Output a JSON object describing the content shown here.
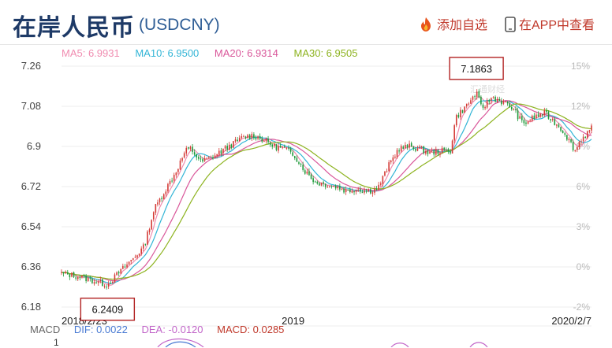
{
  "header": {
    "title": "在岸人民币",
    "code": "(USDCNY)",
    "add_watch_label": "添加自选",
    "view_in_app_label": "在APP中查看"
  },
  "ma_legend": [
    {
      "label": "MA5: 6.9931",
      "color": "#f08cb0"
    },
    {
      "label": "MA10: 6.9500",
      "color": "#33b5d6"
    },
    {
      "label": "MA20: 6.9314",
      "color": "#d9579a"
    },
    {
      "label": "MA30: 6.9505",
      "color": "#8db31f"
    }
  ],
  "watermark": "汇通财经",
  "chart_data": {
    "type": "candlestick",
    "y_left_ticks": [
      "7.26",
      "7.08",
      "6.9",
      "6.72",
      "6.54",
      "6.36",
      "6.18"
    ],
    "y_left_range": [
      6.18,
      7.26
    ],
    "y_right_ticks": [
      "15%",
      "12%",
      "9%",
      "6%",
      "3%",
      "0%",
      "-2%"
    ],
    "x_tick_labels": [
      "2018/2/23",
      "2019",
      "2020/2/7"
    ],
    "x_range": [
      "2018-02-23",
      "2020-02-07"
    ],
    "annotations": {
      "max": "7.1863",
      "min": "6.2409"
    },
    "close_series": [
      [
        "2018-02-23",
        6.33
      ],
      [
        "2018-03-15",
        6.32
      ],
      [
        "2018-04-05",
        6.3
      ],
      [
        "2018-04-26",
        6.28
      ],
      [
        "2018-05-10",
        6.33
      ],
      [
        "2018-05-31",
        6.4
      ],
      [
        "2018-06-14",
        6.45
      ],
      [
        "2018-06-28",
        6.62
      ],
      [
        "2018-07-12",
        6.7
      ],
      [
        "2018-07-26",
        6.78
      ],
      [
        "2018-08-09",
        6.88
      ],
      [
        "2018-08-16",
        6.89
      ],
      [
        "2018-08-30",
        6.83
      ],
      [
        "2018-09-13",
        6.85
      ],
      [
        "2018-09-27",
        6.88
      ],
      [
        "2018-10-11",
        6.91
      ],
      [
        "2018-10-25",
        6.94
      ],
      [
        "2018-11-08",
        6.95
      ],
      [
        "2018-11-22",
        6.93
      ],
      [
        "2018-12-06",
        6.9
      ],
      [
        "2018-12-20",
        6.89
      ],
      [
        "2019-01-03",
        6.86
      ],
      [
        "2019-01-17",
        6.79
      ],
      [
        "2019-01-31",
        6.74
      ],
      [
        "2019-02-14",
        6.73
      ],
      [
        "2019-02-28",
        6.72
      ],
      [
        "2019-03-14",
        6.7
      ],
      [
        "2019-03-28",
        6.71
      ],
      [
        "2019-04-11",
        6.7
      ],
      [
        "2019-04-25",
        6.71
      ],
      [
        "2019-05-09",
        6.81
      ],
      [
        "2019-05-23",
        6.89
      ],
      [
        "2019-06-06",
        6.9
      ],
      [
        "2019-06-20",
        6.89
      ],
      [
        "2019-07-04",
        6.87
      ],
      [
        "2019-07-18",
        6.88
      ],
      [
        "2019-08-01",
        6.88
      ],
      [
        "2019-08-08",
        7.03
      ],
      [
        "2019-08-22",
        7.08
      ],
      [
        "2019-09-05",
        7.14
      ],
      [
        "2019-09-12",
        7.07
      ],
      [
        "2019-09-26",
        7.12
      ],
      [
        "2019-10-10",
        7.1
      ],
      [
        "2019-10-24",
        7.07
      ],
      [
        "2019-11-07",
        7.0
      ],
      [
        "2019-11-21",
        7.03
      ],
      [
        "2019-12-05",
        7.05
      ],
      [
        "2019-12-19",
        7.01
      ],
      [
        "2020-01-02",
        6.96
      ],
      [
        "2020-01-16",
        6.88
      ],
      [
        "2020-01-23",
        6.93
      ],
      [
        "2020-02-07",
        6.98
      ]
    ]
  },
  "macd": {
    "label": "MACD",
    "dif": "DIF: 0.0022",
    "dea": "DEA: -0.0120",
    "macd": "MACD: 0.0285",
    "dif_color": "#4a7bd3",
    "dea_color": "#c266c9",
    "macd_color": "#c0392b",
    "axis_top": "1"
  },
  "colors": {
    "up": "#d43a36",
    "down": "#1f9a3b"
  }
}
